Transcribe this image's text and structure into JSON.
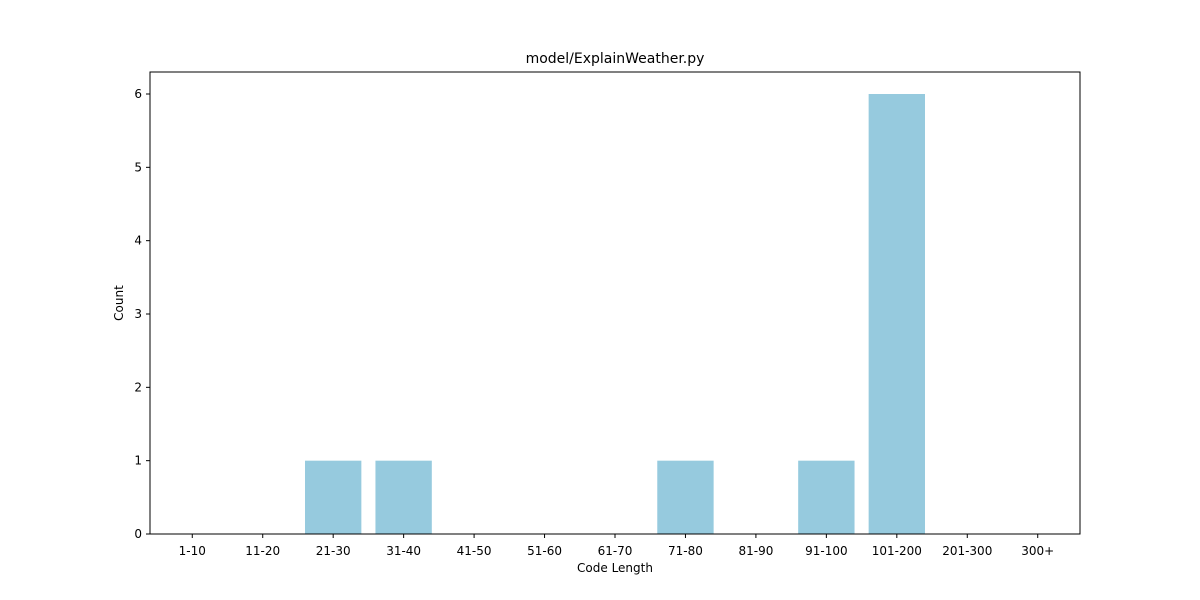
{
  "chart_data": {
    "type": "bar",
    "title": "model/ExplainWeather.py",
    "xlabel": "Code Length",
    "ylabel": "Count",
    "categories": [
      "1-10",
      "11-20",
      "21-30",
      "31-40",
      "41-50",
      "51-60",
      "61-70",
      "71-80",
      "81-90",
      "91-100",
      "101-200",
      "201-300",
      "300+"
    ],
    "values": [
      0,
      0,
      1,
      1,
      0,
      0,
      0,
      1,
      0,
      1,
      6,
      0,
      0
    ],
    "yticks": [
      0,
      1,
      2,
      3,
      4,
      5,
      6
    ],
    "ylim": [
      0,
      6.3
    ],
    "grid": false,
    "bar_color": "#96cade"
  }
}
